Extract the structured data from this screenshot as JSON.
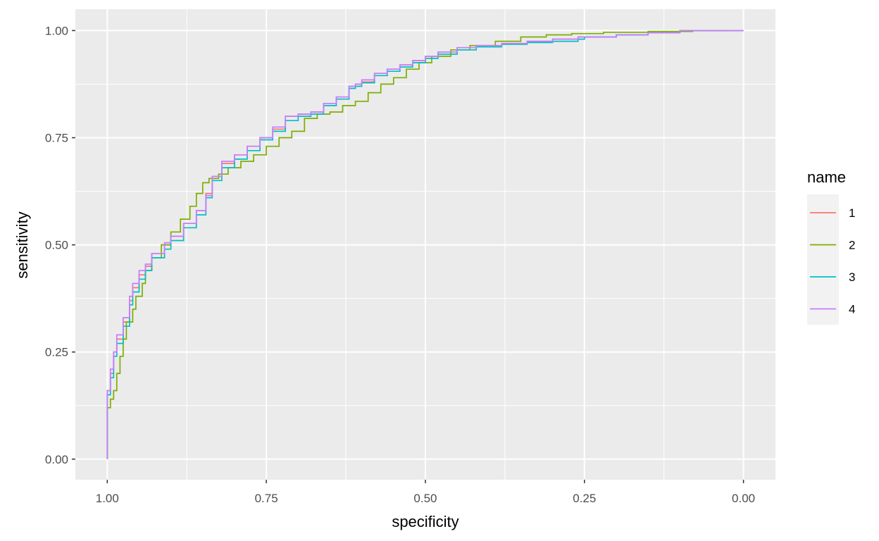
{
  "chart_data": {
    "type": "line",
    "title": "",
    "xlabel": "specificity",
    "ylabel": "sensitivity",
    "xlim": [
      1.0,
      0.0
    ],
    "ylim": [
      0.0,
      1.0
    ],
    "x_reversed": true,
    "x_ticks": [
      1.0,
      0.75,
      0.5,
      0.25,
      0.0
    ],
    "x_tick_labels": [
      "1.00",
      "0.75",
      "0.50",
      "0.25",
      "0.00"
    ],
    "y_ticks": [
      0.0,
      0.25,
      0.5,
      0.75,
      1.0
    ],
    "y_tick_labels": [
      "0.00",
      "0.25",
      "0.50",
      "0.75",
      "1.00"
    ],
    "grid": true,
    "panel_background": "#ebebeb",
    "legend": {
      "title": "name",
      "position": "right"
    },
    "series": [
      {
        "name": "1",
        "color": "#f8766d",
        "points": [
          [
            1.0,
            0.0
          ],
          [
            1.0,
            0.1
          ],
          [
            0.995,
            0.16
          ],
          [
            0.99,
            0.2
          ],
          [
            0.985,
            0.25
          ],
          [
            0.975,
            0.28
          ],
          [
            0.965,
            0.32
          ],
          [
            0.96,
            0.37
          ],
          [
            0.95,
            0.4
          ],
          [
            0.94,
            0.43
          ],
          [
            0.93,
            0.45
          ],
          [
            0.91,
            0.48
          ],
          [
            0.9,
            0.5
          ],
          [
            0.88,
            0.52
          ],
          [
            0.86,
            0.55
          ],
          [
            0.845,
            0.58
          ],
          [
            0.835,
            0.62
          ],
          [
            0.82,
            0.66
          ],
          [
            0.8,
            0.69
          ],
          [
            0.78,
            0.71
          ],
          [
            0.76,
            0.73
          ],
          [
            0.74,
            0.75
          ],
          [
            0.72,
            0.77
          ],
          [
            0.7,
            0.8
          ],
          [
            0.68,
            0.805
          ],
          [
            0.66,
            0.81
          ],
          [
            0.64,
            0.83
          ],
          [
            0.62,
            0.845
          ],
          [
            0.61,
            0.87
          ],
          [
            0.6,
            0.875
          ],
          [
            0.58,
            0.88
          ],
          [
            0.56,
            0.9
          ],
          [
            0.54,
            0.91
          ],
          [
            0.52,
            0.92
          ],
          [
            0.5,
            0.93
          ],
          [
            0.48,
            0.94
          ],
          [
            0.45,
            0.95
          ],
          [
            0.42,
            0.96
          ],
          [
            0.38,
            0.965
          ],
          [
            0.34,
            0.97
          ],
          [
            0.3,
            0.975
          ],
          [
            0.26,
            0.98
          ],
          [
            0.2,
            0.985
          ],
          [
            0.15,
            0.99
          ],
          [
            0.1,
            0.995
          ],
          [
            0.05,
            1.0
          ],
          [
            0.0,
            1.0
          ]
        ]
      },
      {
        "name": "2",
        "color": "#7cae00",
        "points": [
          [
            1.0,
            0.0
          ],
          [
            1.0,
            0.09
          ],
          [
            0.995,
            0.12
          ],
          [
            0.99,
            0.14
          ],
          [
            0.985,
            0.16
          ],
          [
            0.98,
            0.2
          ],
          [
            0.975,
            0.24
          ],
          [
            0.97,
            0.28
          ],
          [
            0.96,
            0.32
          ],
          [
            0.955,
            0.35
          ],
          [
            0.945,
            0.38
          ],
          [
            0.94,
            0.41
          ],
          [
            0.93,
            0.44
          ],
          [
            0.915,
            0.47
          ],
          [
            0.9,
            0.5
          ],
          [
            0.885,
            0.53
          ],
          [
            0.87,
            0.56
          ],
          [
            0.86,
            0.59
          ],
          [
            0.85,
            0.62
          ],
          [
            0.84,
            0.645
          ],
          [
            0.825,
            0.655
          ],
          [
            0.81,
            0.665
          ],
          [
            0.79,
            0.68
          ],
          [
            0.77,
            0.695
          ],
          [
            0.75,
            0.71
          ],
          [
            0.73,
            0.73
          ],
          [
            0.71,
            0.75
          ],
          [
            0.69,
            0.765
          ],
          [
            0.67,
            0.795
          ],
          [
            0.65,
            0.805
          ],
          [
            0.63,
            0.81
          ],
          [
            0.61,
            0.825
          ],
          [
            0.59,
            0.835
          ],
          [
            0.57,
            0.855
          ],
          [
            0.55,
            0.875
          ],
          [
            0.53,
            0.89
          ],
          [
            0.51,
            0.91
          ],
          [
            0.49,
            0.925
          ],
          [
            0.46,
            0.94
          ],
          [
            0.43,
            0.955
          ],
          [
            0.39,
            0.965
          ],
          [
            0.35,
            0.975
          ],
          [
            0.31,
            0.985
          ],
          [
            0.27,
            0.99
          ],
          [
            0.22,
            0.993
          ],
          [
            0.15,
            0.996
          ],
          [
            0.08,
            0.998
          ],
          [
            0.02,
            1.0
          ]
        ]
      },
      {
        "name": "3",
        "color": "#00bfc4",
        "points": [
          [
            1.0,
            0.0
          ],
          [
            1.0,
            0.1
          ],
          [
            0.995,
            0.15
          ],
          [
            0.99,
            0.19
          ],
          [
            0.985,
            0.24
          ],
          [
            0.975,
            0.27
          ],
          [
            0.965,
            0.31
          ],
          [
            0.96,
            0.36
          ],
          [
            0.95,
            0.39
          ],
          [
            0.94,
            0.42
          ],
          [
            0.93,
            0.44
          ],
          [
            0.91,
            0.47
          ],
          [
            0.9,
            0.49
          ],
          [
            0.88,
            0.51
          ],
          [
            0.86,
            0.54
          ],
          [
            0.845,
            0.57
          ],
          [
            0.835,
            0.61
          ],
          [
            0.82,
            0.65
          ],
          [
            0.8,
            0.68
          ],
          [
            0.78,
            0.7
          ],
          [
            0.76,
            0.72
          ],
          [
            0.74,
            0.745
          ],
          [
            0.72,
            0.765
          ],
          [
            0.7,
            0.79
          ],
          [
            0.68,
            0.8
          ],
          [
            0.66,
            0.805
          ],
          [
            0.64,
            0.825
          ],
          [
            0.62,
            0.84
          ],
          [
            0.61,
            0.865
          ],
          [
            0.6,
            0.87
          ],
          [
            0.58,
            0.878
          ],
          [
            0.56,
            0.895
          ],
          [
            0.54,
            0.905
          ],
          [
            0.52,
            0.915
          ],
          [
            0.5,
            0.925
          ],
          [
            0.48,
            0.935
          ],
          [
            0.45,
            0.945
          ],
          [
            0.42,
            0.955
          ],
          [
            0.38,
            0.962
          ],
          [
            0.34,
            0.968
          ],
          [
            0.3,
            0.972
          ],
          [
            0.26,
            0.975
          ],
          [
            0.25,
            0.98
          ],
          [
            0.2,
            0.985
          ],
          [
            0.15,
            0.99
          ],
          [
            0.1,
            0.995
          ],
          [
            0.05,
            1.0
          ],
          [
            0.0,
            1.0
          ]
        ]
      },
      {
        "name": "4",
        "color": "#c77cff",
        "points": [
          [
            1.0,
            0.0
          ],
          [
            1.0,
            0.11
          ],
          [
            0.995,
            0.16
          ],
          [
            0.99,
            0.21
          ],
          [
            0.985,
            0.25
          ],
          [
            0.975,
            0.29
          ],
          [
            0.965,
            0.33
          ],
          [
            0.96,
            0.38
          ],
          [
            0.95,
            0.41
          ],
          [
            0.94,
            0.44
          ],
          [
            0.93,
            0.455
          ],
          [
            0.91,
            0.48
          ],
          [
            0.9,
            0.505
          ],
          [
            0.88,
            0.52
          ],
          [
            0.86,
            0.55
          ],
          [
            0.845,
            0.58
          ],
          [
            0.835,
            0.615
          ],
          [
            0.82,
            0.66
          ],
          [
            0.8,
            0.695
          ],
          [
            0.78,
            0.71
          ],
          [
            0.76,
            0.73
          ],
          [
            0.74,
            0.75
          ],
          [
            0.72,
            0.775
          ],
          [
            0.7,
            0.8
          ],
          [
            0.68,
            0.805
          ],
          [
            0.66,
            0.81
          ],
          [
            0.64,
            0.83
          ],
          [
            0.62,
            0.845
          ],
          [
            0.61,
            0.87
          ],
          [
            0.6,
            0.875
          ],
          [
            0.58,
            0.885
          ],
          [
            0.56,
            0.9
          ],
          [
            0.54,
            0.91
          ],
          [
            0.52,
            0.92
          ],
          [
            0.5,
            0.93
          ],
          [
            0.48,
            0.94
          ],
          [
            0.45,
            0.95
          ],
          [
            0.42,
            0.96
          ],
          [
            0.38,
            0.965
          ],
          [
            0.34,
            0.97
          ],
          [
            0.3,
            0.975
          ],
          [
            0.26,
            0.98
          ],
          [
            0.2,
            0.985
          ],
          [
            0.15,
            0.99
          ],
          [
            0.1,
            0.995
          ],
          [
            0.05,
            1.0
          ],
          [
            0.0,
            1.0
          ]
        ]
      }
    ]
  }
}
